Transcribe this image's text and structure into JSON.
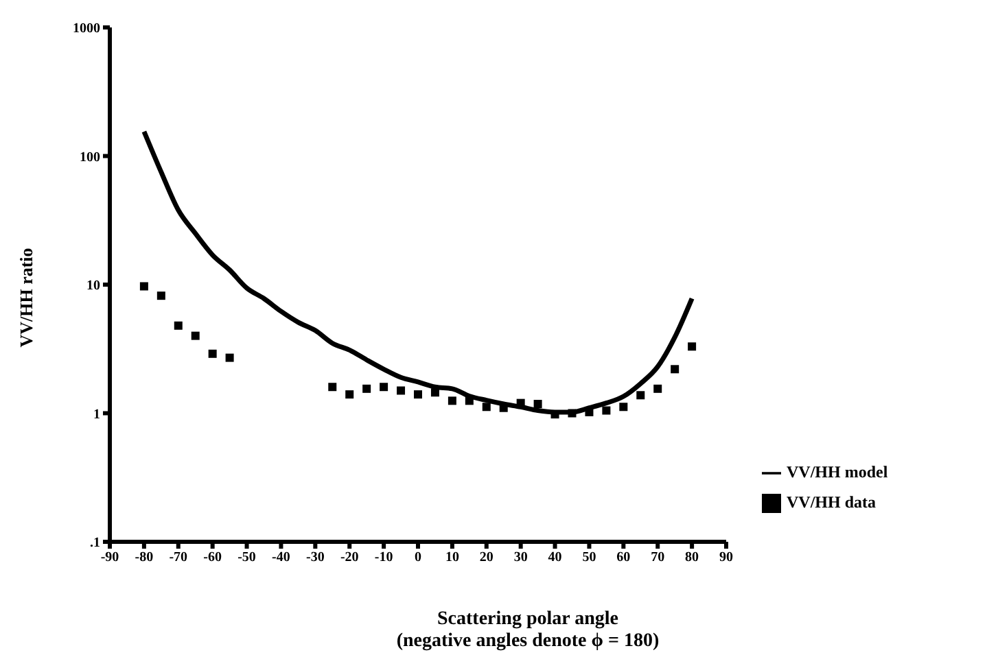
{
  "chart_data": {
    "type": "line",
    "xlabel": "Scattering polar angle\n(negative angles denote ϕ = 180)",
    "ylabel": "VV/HH ratio",
    "log": "y",
    "grid": false,
    "legend": "right",
    "xlim": [
      -90,
      90
    ],
    "xticks": [
      -90,
      -80,
      -70,
      -60,
      -50,
      -40,
      -30,
      -20,
      -10,
      0,
      10,
      20,
      30,
      40,
      50,
      60,
      70,
      80,
      90
    ],
    "ylim": [
      0.1,
      1000
    ],
    "yticks": [
      {
        "value": 0.1,
        "label": ".1"
      },
      1,
      10,
      100,
      1000
    ],
    "series": [
      {
        "name": "VV/HH model",
        "type": "line",
        "color": "#000000",
        "line_style": "solid",
        "marker": "none",
        "x": [
          -80,
          -75,
          -70,
          -65,
          -60,
          -55,
          -50,
          -45,
          -40,
          -35,
          -30,
          -25,
          -20,
          -15,
          -10,
          -5,
          0,
          5,
          10,
          15,
          20,
          25,
          30,
          35,
          40,
          45,
          50,
          55,
          60,
          65,
          70,
          75,
          80
        ],
        "values": [
          155,
          75,
          38,
          25,
          17,
          13,
          9.4,
          7.8,
          6.2,
          5.1,
          4.4,
          3.5,
          3.1,
          2.6,
          2.2,
          1.9,
          1.75,
          1.6,
          1.55,
          1.36,
          1.26,
          1.18,
          1.12,
          1.05,
          1.02,
          1.02,
          1.1,
          1.2,
          1.35,
          1.7,
          2.3,
          3.9,
          7.8
        ]
      },
      {
        "name": "VV/HH data",
        "type": "scatter",
        "color": "#000000",
        "marker": "square",
        "x": [
          -80,
          -75,
          -70,
          -65,
          -60,
          -55,
          -25,
          -20,
          -15,
          -10,
          -5,
          0,
          5,
          10,
          15,
          20,
          25,
          30,
          35,
          40,
          45,
          50,
          55,
          60,
          65,
          70,
          75,
          80
        ],
        "values": [
          9.7,
          8.2,
          4.8,
          4.0,
          2.9,
          2.7,
          1.6,
          1.4,
          1.55,
          1.6,
          1.5,
          1.4,
          1.45,
          1.25,
          1.25,
          1.12,
          1.1,
          1.2,
          1.18,
          0.98,
          1.0,
          1.02,
          1.05,
          1.12,
          1.38,
          1.55,
          2.2,
          3.3
        ]
      }
    ]
  }
}
